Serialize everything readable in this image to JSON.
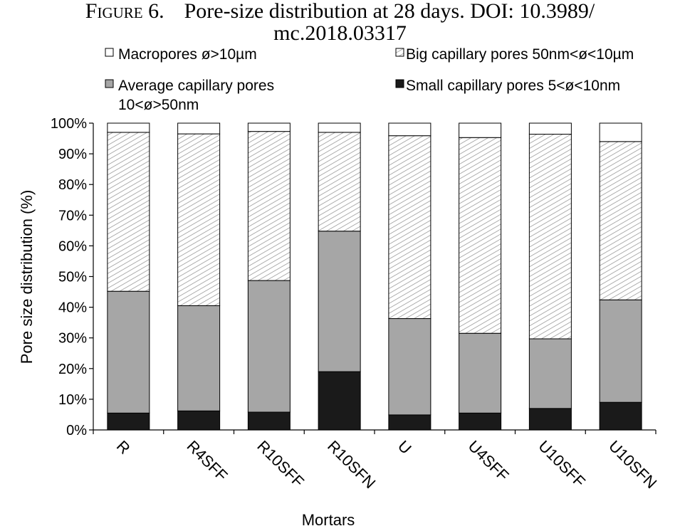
{
  "figure": {
    "label": "Figure 6.",
    "caption_line1": "Pore-size distribution at 28 days. DOI: 10.3989/",
    "caption_line2": "mc.2018.03317"
  },
  "chart_data": {
    "type": "bar",
    "stacked": true,
    "percent_scale": true,
    "categories": [
      "R",
      "R4SFF",
      "R10SFF",
      "R10SFN",
      "U",
      "U4SFF",
      "U10SFF",
      "U10SFN"
    ],
    "series": [
      {
        "name": "Small capillary pores 5<ø<10nm",
        "values": [
          5.5,
          6.2,
          5.8,
          19.0,
          4.9,
          5.5,
          7.0,
          9.0
        ],
        "color": "#1a1a1a"
      },
      {
        "name": "Average capillary pores 10<ø>50nm",
        "values": [
          39.7,
          34.3,
          42.9,
          45.8,
          31.4,
          26.0,
          22.7,
          33.4
        ],
        "color": "#a6a6a6"
      },
      {
        "name": "Big capillary pores 50nm<ø<10µm",
        "values": [
          51.8,
          56.0,
          48.6,
          32.2,
          59.6,
          63.8,
          66.7,
          51.6
        ],
        "color": "hatched"
      },
      {
        "name": "Macropores ø>10µm",
        "values": [
          3.0,
          3.5,
          2.7,
          3.0,
          4.1,
          4.7,
          3.6,
          6.0
        ],
        "color": "#ffffff"
      }
    ],
    "legend_lines": [
      {
        "text": "Macropores ø>10µm",
        "series": 3
      },
      {
        "text": "Big capillary pores 50nm<ø<10µm",
        "series": 2
      },
      {
        "text": "Average capillary pores",
        "series": 1,
        "continuation": "10<ø>50nm"
      },
      {
        "text": "Small capillary pores 5<ø<10nm",
        "series": 0
      }
    ],
    "xlabel": "Mortars",
    "ylabel": "Pore size distribution (%)",
    "ylim": [
      0,
      100
    ],
    "yticks": [
      "0%",
      "10%",
      "20%",
      "30%",
      "40%",
      "50%",
      "60%",
      "70%",
      "80%",
      "90%",
      "100%"
    ],
    "grid": false,
    "legend_position": "top"
  }
}
